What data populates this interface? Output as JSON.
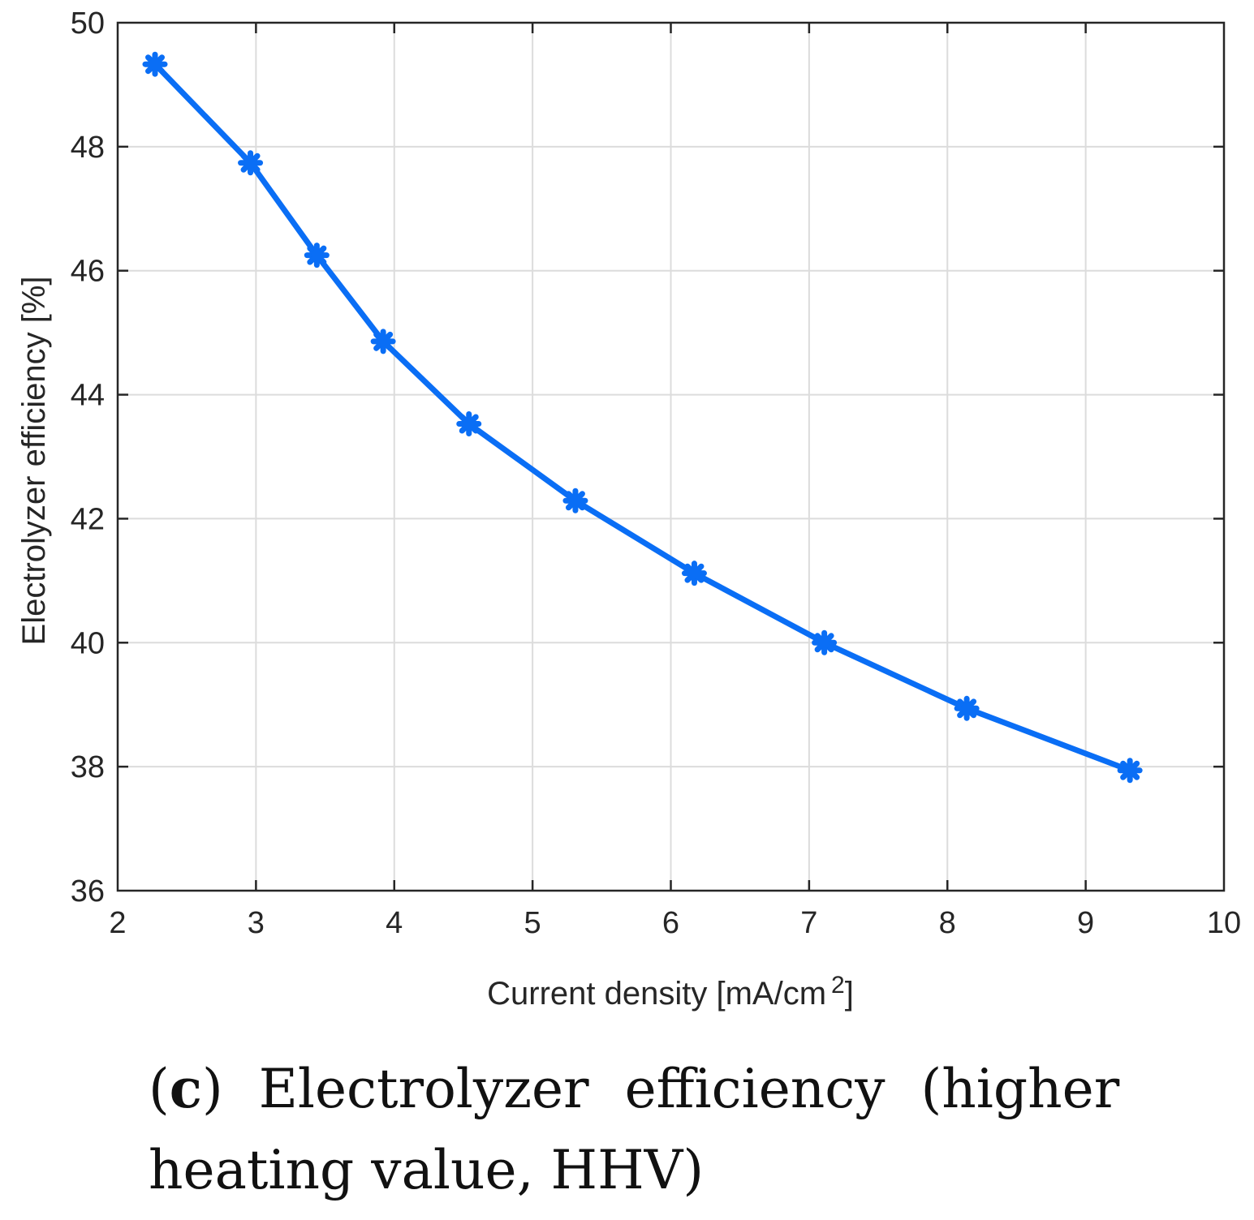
{
  "chart_data": {
    "type": "line",
    "title": "",
    "xlabel": "Current density [mA/cm",
    "xlabel_superscript": "2",
    "xlabel_close": "]",
    "ylabel": "Electrolyzer efficiency [%]",
    "xlim": [
      2,
      10
    ],
    "ylim": [
      36,
      50
    ],
    "xticks": [
      2,
      3,
      4,
      5,
      6,
      7,
      8,
      9,
      10
    ],
    "yticks": [
      36,
      38,
      40,
      42,
      44,
      46,
      48,
      50
    ],
    "grid": true,
    "color": "#0a6ef5",
    "series": [
      {
        "name": "Electrolyzer efficiency (HHV)",
        "x": [
          2.27,
          2.96,
          3.44,
          3.92,
          4.54,
          5.31,
          6.17,
          7.11,
          8.14,
          9.32
        ],
        "y": [
          49.33,
          47.74,
          46.25,
          44.86,
          43.53,
          42.29,
          41.12,
          40.0,
          38.94,
          37.94
        ]
      }
    ]
  },
  "caption": {
    "open": "(",
    "label": "c",
    "close": ")",
    "line1": [
      "Electrolyzer",
      "efficiency",
      "(higher"
    ],
    "line2": "heating value, HHV)"
  }
}
